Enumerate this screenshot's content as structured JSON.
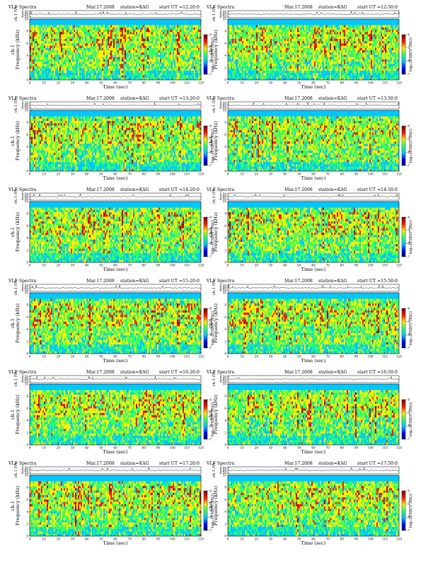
{
  "header": {
    "title": "VLF Spectra",
    "date": "Mar.17.2008",
    "station": "station=KAG",
    "start_prefix": "start UT ="
  },
  "labels": {
    "ch_label": "ch.1 (V)",
    "freq_label": "Frequency (kHz)",
    "ch_tag": "ch.1",
    "time_label": "Time (sec)",
    "colorbar_label": "log₁₀(PSD(V²/Hz))"
  },
  "colors": {
    "background": "#00c8ff",
    "low": "#33ff66",
    "mid": "#ffee00",
    "high": "#ff1a00",
    "peak": "#b00000",
    "trace": "#000000"
  },
  "chart_data": [
    {
      "type": "heatmap",
      "panel": "A",
      "start_ut": "12:20:0",
      "xlim": [
        0,
        120
      ],
      "ylim": [
        0,
        10
      ],
      "ch_ylim": [
        -0.5,
        0.5
      ],
      "x_ticks": [
        0,
        10,
        20,
        30,
        40,
        50,
        60,
        70,
        80,
        90,
        100,
        110,
        120
      ],
      "y_ticks": [
        0,
        2,
        4,
        6,
        8,
        10
      ],
      "ch_ticks": [
        "0.50",
        "0.00",
        "-0.50"
      ],
      "colorbar_ticks": [
        "-4",
        "-5",
        "-6",
        "-7"
      ]
    },
    {
      "type": "heatmap",
      "panel": "B",
      "start_ut": "12:50:0",
      "xlim": [
        0,
        120
      ],
      "ylim": [
        0,
        10
      ],
      "ch_ylim": [
        -0.5,
        0.5
      ],
      "x_ticks": [
        0,
        10,
        20,
        30,
        40,
        50,
        60,
        70,
        80,
        90,
        100,
        110,
        120
      ],
      "y_ticks": [
        0,
        2,
        4,
        6,
        8,
        10
      ],
      "ch_ticks": [
        "0.50",
        "0.00",
        "-0.50"
      ],
      "colorbar_ticks": [
        "-4",
        "-5",
        "-6",
        "-7"
      ]
    },
    {
      "type": "heatmap",
      "panel": "C",
      "start_ut": "13:20:0",
      "xlim": [
        0,
        120
      ],
      "ylim": [
        0,
        10
      ],
      "ch_ylim": [
        -0.5,
        0.5
      ],
      "x_ticks": [
        0,
        10,
        20,
        30,
        40,
        50,
        60,
        70,
        80,
        90,
        100,
        110,
        120
      ],
      "y_ticks": [
        0,
        2,
        4,
        6,
        8,
        10
      ],
      "ch_ticks": [
        "0.50",
        "0.00",
        "-0.50"
      ],
      "colorbar_ticks": [
        "-4",
        "-5",
        "-6",
        "-7"
      ]
    },
    {
      "type": "heatmap",
      "panel": "D",
      "start_ut": "13:50:0",
      "xlim": [
        0,
        120
      ],
      "ylim": [
        0,
        10
      ],
      "ch_ylim": [
        -0.5,
        0.5
      ],
      "x_ticks": [
        0,
        10,
        20,
        30,
        40,
        50,
        60,
        70,
        80,
        90,
        100,
        110,
        120
      ],
      "y_ticks": [
        0,
        2,
        4,
        6,
        8,
        10
      ],
      "ch_ticks": [
        "0.50",
        "0.00",
        "-0.50"
      ],
      "colorbar_ticks": [
        "-4",
        "-5",
        "-6",
        "-7"
      ]
    },
    {
      "type": "heatmap",
      "panel": "E",
      "start_ut": "14:20:0",
      "xlim": [
        0,
        120
      ],
      "ylim": [
        0,
        10
      ],
      "ch_ylim": [
        -0.5,
        0.5
      ],
      "x_ticks": [
        0,
        10,
        20,
        30,
        40,
        50,
        60,
        70,
        80,
        90,
        100,
        110,
        120
      ],
      "y_ticks": [
        0,
        2,
        4,
        6,
        8,
        10
      ],
      "ch_ticks": [
        "0.50",
        "0.00",
        "-0.50"
      ],
      "colorbar_ticks": [
        "-4",
        "-5",
        "-6",
        "-7"
      ]
    },
    {
      "type": "heatmap",
      "panel": "F",
      "start_ut": "14:50:0",
      "xlim": [
        0,
        120
      ],
      "ylim": [
        0,
        10
      ],
      "ch_ylim": [
        -0.5,
        0.5
      ],
      "x_ticks": [
        0,
        10,
        20,
        30,
        40,
        50,
        60,
        70,
        80,
        90,
        100,
        110,
        120
      ],
      "y_ticks": [
        0,
        2,
        4,
        6,
        8,
        10
      ],
      "ch_ticks": [
        "0.50",
        "0.00",
        "-0.50"
      ],
      "colorbar_ticks": [
        "-4",
        "-5",
        "-6",
        "-7"
      ]
    },
    {
      "type": "heatmap",
      "panel": "G",
      "start_ut": "15:20:0",
      "xlim": [
        0,
        120
      ],
      "ylim": [
        0,
        10
      ],
      "ch_ylim": [
        -0.5,
        0.5
      ],
      "x_ticks": [
        0,
        10,
        20,
        30,
        40,
        50,
        60,
        70,
        80,
        90,
        100,
        110,
        120
      ],
      "y_ticks": [
        0,
        2,
        4,
        6,
        8,
        10
      ],
      "ch_ticks": [
        "0.50",
        "0.00",
        "-0.50"
      ],
      "colorbar_ticks": [
        "-4",
        "-5",
        "-6",
        "-7"
      ]
    },
    {
      "type": "heatmap",
      "panel": "H",
      "start_ut": "15:50:0",
      "xlim": [
        0,
        120
      ],
      "ylim": [
        0,
        10
      ],
      "ch_ylim": [
        -0.5,
        0.5
      ],
      "x_ticks": [
        0,
        10,
        20,
        30,
        40,
        50,
        60,
        70,
        80,
        90,
        100,
        110,
        120
      ],
      "y_ticks": [
        0,
        2,
        4,
        6,
        8,
        10
      ],
      "ch_ticks": [
        "0.50",
        "0.00",
        "-0.50"
      ],
      "colorbar_ticks": [
        "-4",
        "-5",
        "-6",
        "-7"
      ]
    },
    {
      "type": "heatmap",
      "panel": "I",
      "start_ut": "16:20:0",
      "xlim": [
        0,
        120
      ],
      "ylim": [
        0,
        10
      ],
      "ch_ylim": [
        -0.5,
        0.5
      ],
      "x_ticks": [
        0,
        10,
        20,
        30,
        40,
        50,
        60,
        70,
        80,
        90,
        100,
        110,
        120
      ],
      "y_ticks": [
        0,
        2,
        4,
        6,
        8,
        10
      ],
      "ch_ticks": [
        "0.50",
        "0.00",
        "-0.50"
      ],
      "colorbar_ticks": [
        "-4",
        "-5",
        "-6",
        "-7"
      ]
    },
    {
      "type": "heatmap",
      "panel": "J",
      "start_ut": "16:50:0",
      "xlim": [
        0,
        120
      ],
      "ylim": [
        0,
        10
      ],
      "ch_ylim": [
        -0.5,
        0.5
      ],
      "x_ticks": [
        0,
        10,
        20,
        30,
        40,
        50,
        60,
        70,
        80,
        90,
        100,
        110,
        120
      ],
      "y_ticks": [
        0,
        2,
        4,
        6,
        8,
        10
      ],
      "ch_ticks": [
        "0.50",
        "0.00",
        "-0.50"
      ],
      "colorbar_ticks": [
        "-4",
        "-5",
        "-6",
        "-7"
      ]
    },
    {
      "type": "heatmap",
      "panel": "K",
      "start_ut": "17:20:0",
      "xlim": [
        0,
        120
      ],
      "ylim": [
        0,
        10
      ],
      "ch_ylim": [
        -0.5,
        0.5
      ],
      "x_ticks": [
        0,
        10,
        20,
        30,
        40,
        50,
        60,
        70,
        80,
        90,
        100,
        110,
        120
      ],
      "y_ticks": [
        0,
        2,
        4,
        6,
        8,
        10
      ],
      "ch_ticks": [
        "0.50",
        "0.00",
        "-0.50"
      ],
      "colorbar_ticks": [
        "-4",
        "-5",
        "-6",
        "-7"
      ]
    },
    {
      "type": "heatmap",
      "panel": "L",
      "start_ut": "17:50:0",
      "xlim": [
        0,
        120
      ],
      "ylim": [
        0,
        10
      ],
      "ch_ylim": [
        -0.5,
        0.5
      ],
      "x_ticks": [
        0,
        10,
        20,
        30,
        40,
        50,
        60,
        70,
        80,
        90,
        100,
        110,
        120
      ],
      "y_ticks": [
        0,
        2,
        4,
        6,
        8,
        10
      ],
      "ch_ticks": [
        "0.50",
        "0.00",
        "-0.50"
      ],
      "colorbar_ticks": [
        "-4",
        "-5",
        "-6",
        "-7"
      ]
    }
  ]
}
